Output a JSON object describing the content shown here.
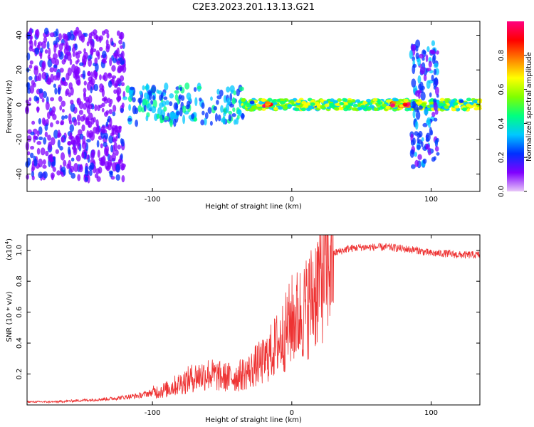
{
  "title": "C2E3.2023.201.13.13.G21",
  "chart_data": [
    {
      "type": "heatmap",
      "xlabel": "Height of straight line (km)",
      "ylabel": "Frequency (Hz)",
      "xlim": [
        -190,
        135
      ],
      "ylim": [
        -50,
        48
      ],
      "x_ticks": [
        -100,
        0,
        100
      ],
      "y_ticks": [
        -40,
        -20,
        0,
        20,
        40
      ],
      "colorbar": {
        "label": "Normalized spectral amplitude",
        "range": [
          0.0,
          1.0
        ],
        "ticks": [
          "0.0",
          "0.2",
          "0.4",
          "0.6",
          "0.8"
        ],
        "colors": [
          "#e8c8f8",
          "#8000ff",
          "#0030ff",
          "#00c8ff",
          "#00ff80",
          "#80ff00",
          "#ffff00",
          "#ff8000",
          "#ff0000",
          "#ff0080"
        ]
      },
      "features": [
        {
          "x_range": [
            -190,
            -120
          ],
          "freq_spread": 48,
          "amplitude": 0.15
        },
        {
          "x_range": [
            -120,
            -35
          ],
          "freq_spread": 12,
          "amplitude": 0.35
        },
        {
          "x_range": [
            -35,
            135
          ],
          "freq_spread": 3,
          "amplitude": 0.55
        },
        {
          "x_range": [
            72,
            84
          ],
          "freq_spread": 1,
          "amplitude": 0.95
        },
        {
          "x_range": [
            -20,
            -15
          ],
          "freq_spread": 1,
          "amplitude": 0.95
        },
        {
          "x_range": [
            85,
            105
          ],
          "freq_spread": 40,
          "amplitude": 0.25
        }
      ]
    },
    {
      "type": "line",
      "xlabel": "Height of straight line (km)",
      "ylabel": "SNR (10 * v/v)",
      "multiplier_label": "(x10",
      "multiplier_exp": "4",
      "multiplier_close": ")",
      "xlim": [
        -190,
        135
      ],
      "ylim": [
        0.0,
        1.1
      ],
      "x_ticks": [
        -100,
        0,
        100
      ],
      "y_ticks": [
        0.2,
        0.4,
        0.6,
        0.8,
        1.0
      ],
      "series": [
        {
          "color": "#ee3333",
          "x": [
            -190,
            -170,
            -150,
            -130,
            -110,
            -90,
            -80,
            -70,
            -60,
            -50,
            -40,
            -30,
            -25,
            -20,
            -15,
            -10,
            -5,
            0,
            5,
            10,
            15,
            20,
            25,
            30,
            40,
            50,
            60,
            70,
            80,
            90,
            95,
            100,
            110,
            120,
            135
          ],
          "y": [
            0.02,
            0.02,
            0.03,
            0.04,
            0.06,
            0.1,
            0.14,
            0.18,
            0.2,
            0.18,
            0.18,
            0.22,
            0.26,
            0.28,
            0.34,
            0.4,
            0.46,
            0.55,
            0.58,
            0.62,
            0.7,
            0.82,
            0.92,
            0.98,
            1.01,
            1.02,
            1.02,
            1.02,
            1.01,
            1.0,
            0.99,
            0.98,
            0.98,
            0.97,
            0.97
          ]
        }
      ]
    }
  ]
}
